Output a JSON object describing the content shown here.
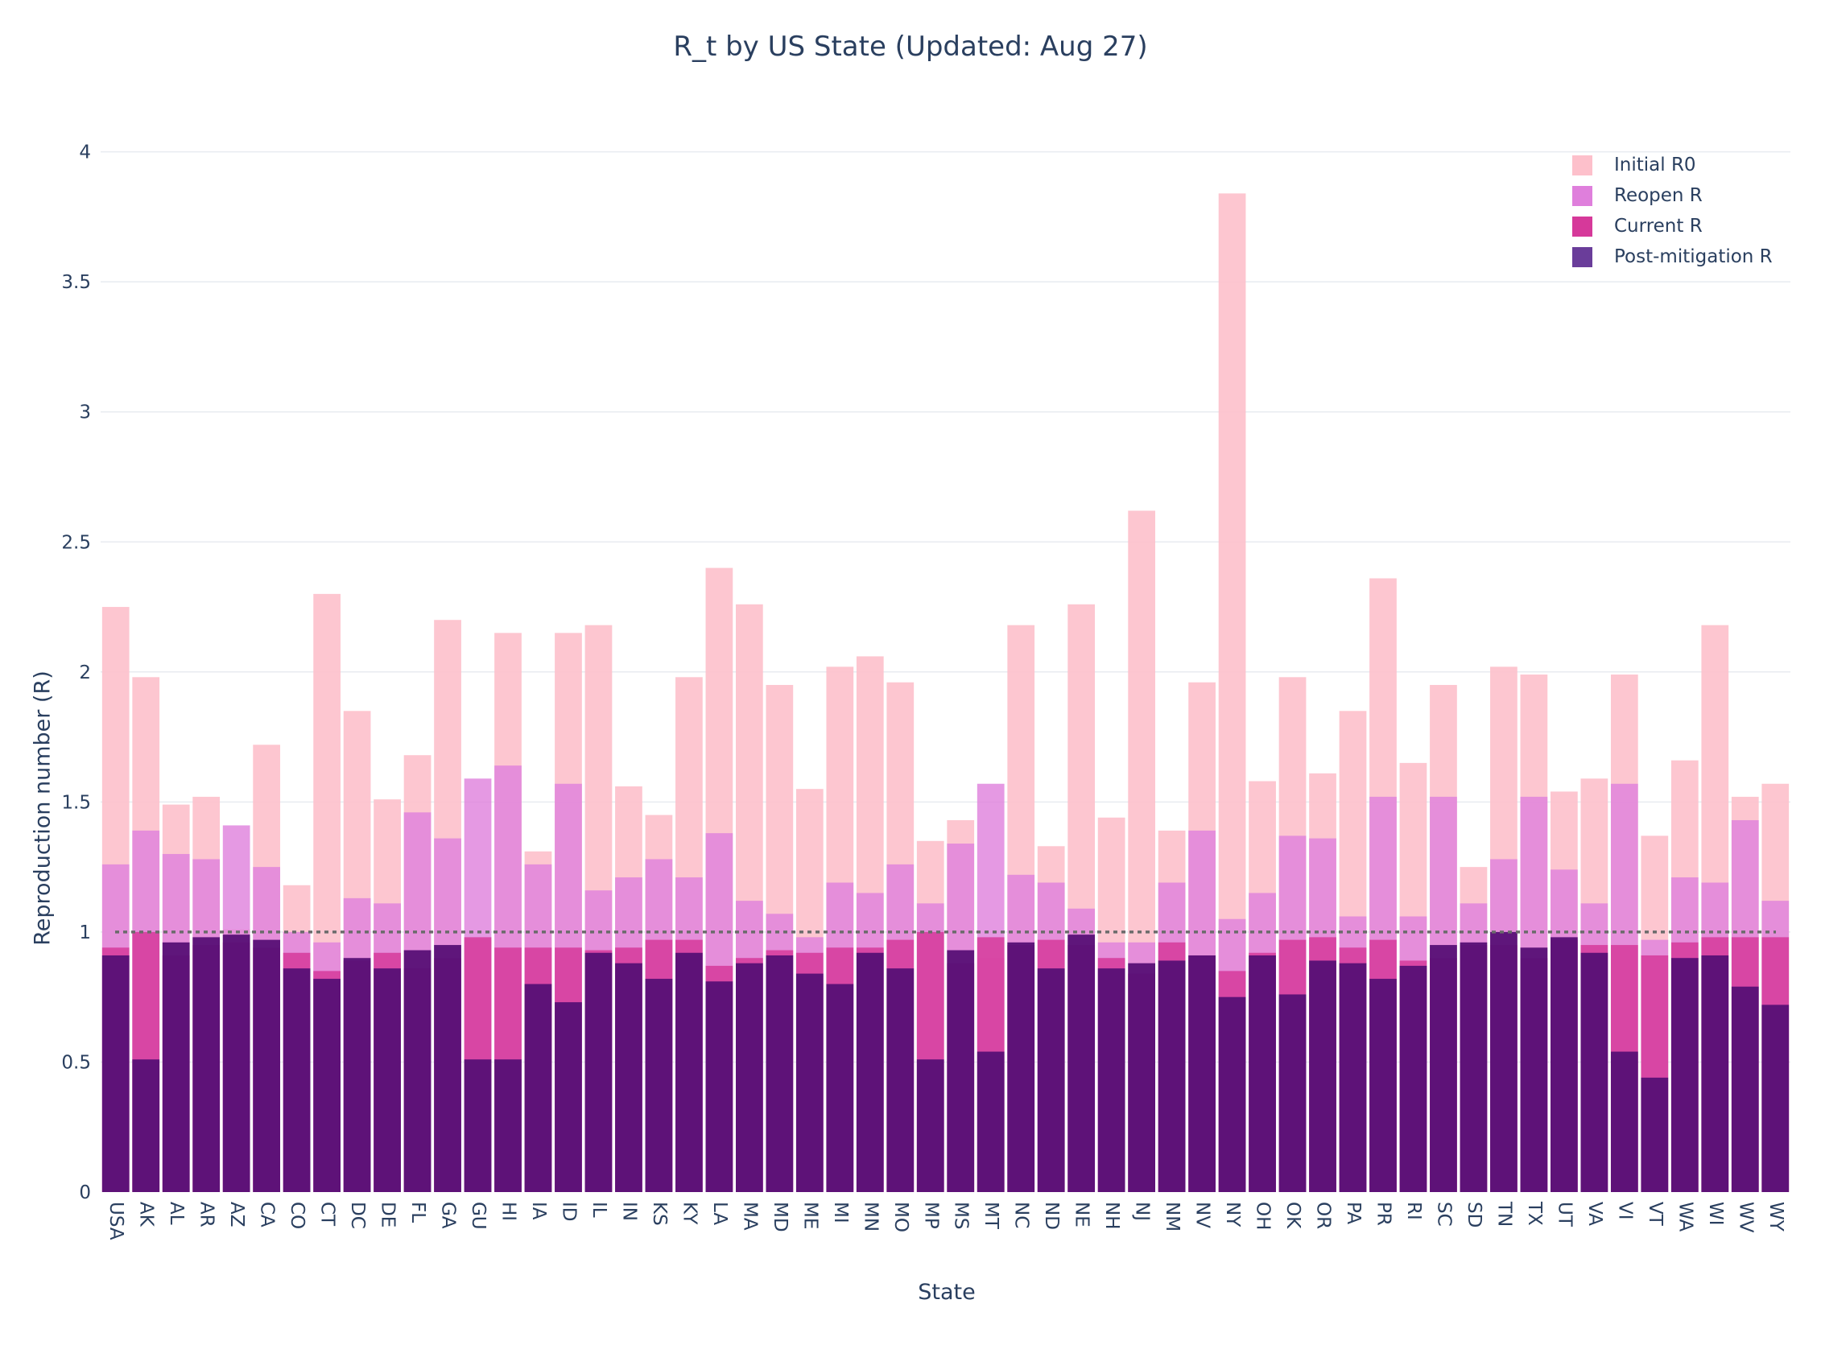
{
  "title": "R_t by US State (Updated: Aug 27)",
  "colors": {
    "initial": "#fdc0cb",
    "reopen": "#df7fdc",
    "current": "#d6399a",
    "post": "#571076",
    "post_legend": "#6a3d9a",
    "grid": "#e8ebf0",
    "axis_text": "#2a3f5f",
    "reference": "#6b6b6b"
  },
  "chart_data": {
    "type": "bar",
    "barmode": "overlay",
    "title": "R_t by US State (Updated: Aug 27)",
    "xlabel": "State",
    "ylabel": "Reproduction number (R)",
    "ylim": [
      0,
      4.2
    ],
    "yticks": [
      0,
      0.5,
      1,
      1.5,
      2,
      2.5,
      3,
      3.5,
      4
    ],
    "ytick_labels": [
      "0",
      "0.5",
      "1",
      "1.5",
      "2",
      "2.5",
      "3",
      "3.5",
      "4"
    ],
    "grid": true,
    "legend_position": "top-right",
    "reference_line": 1,
    "categories": [
      "USA",
      "AK",
      "AL",
      "AR",
      "AZ",
      "CA",
      "CO",
      "CT",
      "DC",
      "DE",
      "FL",
      "GA",
      "GU",
      "HI",
      "IA",
      "ID",
      "IL",
      "IN",
      "KS",
      "KY",
      "LA",
      "MA",
      "MD",
      "ME",
      "MI",
      "MN",
      "MO",
      "MP",
      "MS",
      "MT",
      "NC",
      "ND",
      "NE",
      "NH",
      "NJ",
      "NM",
      "NV",
      "NY",
      "OH",
      "OK",
      "OR",
      "PA",
      "PR",
      "RI",
      "SC",
      "SD",
      "TN",
      "TX",
      "UT",
      "VA",
      "VI",
      "VT",
      "WA",
      "WI",
      "WV",
      "WY"
    ],
    "series": [
      {
        "name": "Initial R0",
        "values": [
          2.25,
          1.98,
          1.49,
          1.52,
          1.01,
          1.72,
          1.18,
          2.3,
          1.85,
          1.51,
          1.68,
          2.2,
          0.97,
          2.15,
          1.31,
          2.15,
          2.18,
          1.56,
          1.45,
          1.98,
          2.4,
          2.26,
          1.95,
          1.55,
          2.02,
          2.06,
          1.96,
          1.35,
          1.43,
          0.9,
          2.18,
          1.33,
          2.26,
          1.44,
          2.62,
          1.39,
          1.96,
          3.84,
          1.58,
          1.98,
          1.61,
          1.85,
          2.36,
          1.65,
          1.95,
          1.25,
          2.02,
          1.99,
          1.54,
          1.59,
          1.99,
          1.37,
          1.66,
          2.18,
          1.52,
          1.57
        ]
      },
      {
        "name": "Reopen R",
        "values": [
          1.26,
          1.39,
          1.3,
          1.28,
          1.41,
          1.25,
          1.0,
          0.96,
          1.13,
          1.11,
          1.46,
          1.36,
          1.59,
          1.64,
          1.26,
          1.57,
          1.16,
          1.21,
          1.28,
          1.21,
          1.38,
          1.12,
          1.07,
          0.98,
          1.19,
          1.15,
          1.26,
          1.11,
          1.34,
          1.57,
          1.22,
          1.19,
          1.09,
          0.96,
          0.96,
          1.19,
          1.39,
          1.05,
          1.15,
          1.37,
          1.36,
          1.06,
          1.52,
          1.06,
          1.52,
          1.11,
          1.28,
          1.52,
          1.24,
          1.11,
          1.57,
          0.97,
          1.21,
          1.19,
          1.43,
          1.12
        ]
      },
      {
        "name": "Current R",
        "values": [
          0.94,
          1.0,
          0.91,
          0.95,
          0.96,
          0.94,
          0.92,
          0.85,
          0.89,
          0.92,
          0.86,
          0.9,
          0.98,
          0.94,
          0.94,
          0.94,
          0.93,
          0.94,
          0.97,
          0.97,
          0.87,
          0.9,
          0.93,
          0.92,
          0.94,
          0.94,
          0.97,
          1.0,
          0.88,
          0.98,
          0.95,
          0.97,
          0.95,
          0.9,
          0.84,
          0.96,
          0.91,
          0.85,
          0.92,
          0.97,
          0.98,
          0.94,
          0.97,
          0.89,
          0.9,
          0.95,
          0.95,
          0.9,
          0.97,
          0.95,
          0.95,
          0.91,
          0.96,
          0.98,
          0.98,
          0.98
        ]
      },
      {
        "name": "Post-mitigation R",
        "values": [
          0.91,
          0.51,
          0.96,
          0.98,
          0.99,
          0.97,
          0.86,
          0.82,
          0.9,
          0.86,
          0.93,
          0.95,
          0.51,
          0.51,
          0.8,
          0.73,
          0.92,
          0.88,
          0.82,
          0.92,
          0.81,
          0.88,
          0.91,
          0.84,
          0.8,
          0.92,
          0.86,
          0.51,
          0.93,
          0.54,
          0.96,
          0.86,
          0.99,
          0.86,
          0.88,
          0.89,
          0.91,
          0.75,
          0.91,
          0.76,
          0.89,
          0.88,
          0.82,
          0.87,
          0.95,
          0.96,
          1.0,
          0.94,
          0.98,
          0.92,
          0.54,
          0.44,
          0.9,
          0.91,
          0.79,
          0.72
        ]
      }
    ]
  }
}
